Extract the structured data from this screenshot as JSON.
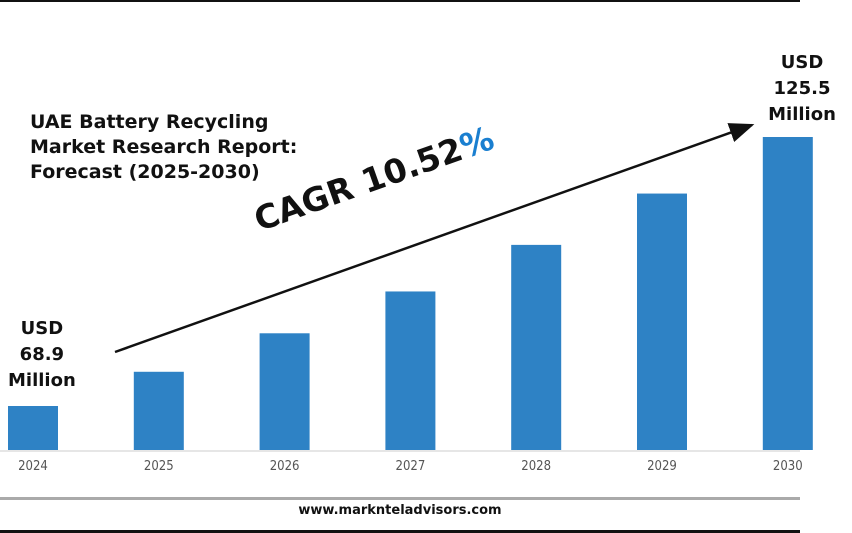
{
  "chart_data": {
    "type": "bar",
    "title": "UAE Battery Recycling Market Research Report: Forecast (2025-2030)",
    "title_lines": [
      "UAE Battery Recycling",
      "Market Research Report:",
      "Forecast (2025-2030)"
    ],
    "categories": [
      "2024",
      "2025",
      "2026",
      "2027",
      "2028",
      "2029",
      "2030"
    ],
    "values": [
      68.9,
      76.1,
      84.2,
      93.0,
      102.8,
      113.6,
      125.5
    ],
    "unit": "USD Million",
    "ylim": [
      59.6,
      125.5
    ],
    "grid": false,
    "bar_color": "#2e82c5",
    "annotations": {
      "start_label": [
        "USD",
        "68.9",
        "Million"
      ],
      "end_label": [
        "USD",
        "125.5",
        "Million"
      ],
      "cagr_text": "CAGR 10.52",
      "cagr_pct": "%",
      "cagr_pct_color": "#1a7fd0"
    }
  },
  "footer": {
    "url": "www.marknteladvisors.com"
  }
}
